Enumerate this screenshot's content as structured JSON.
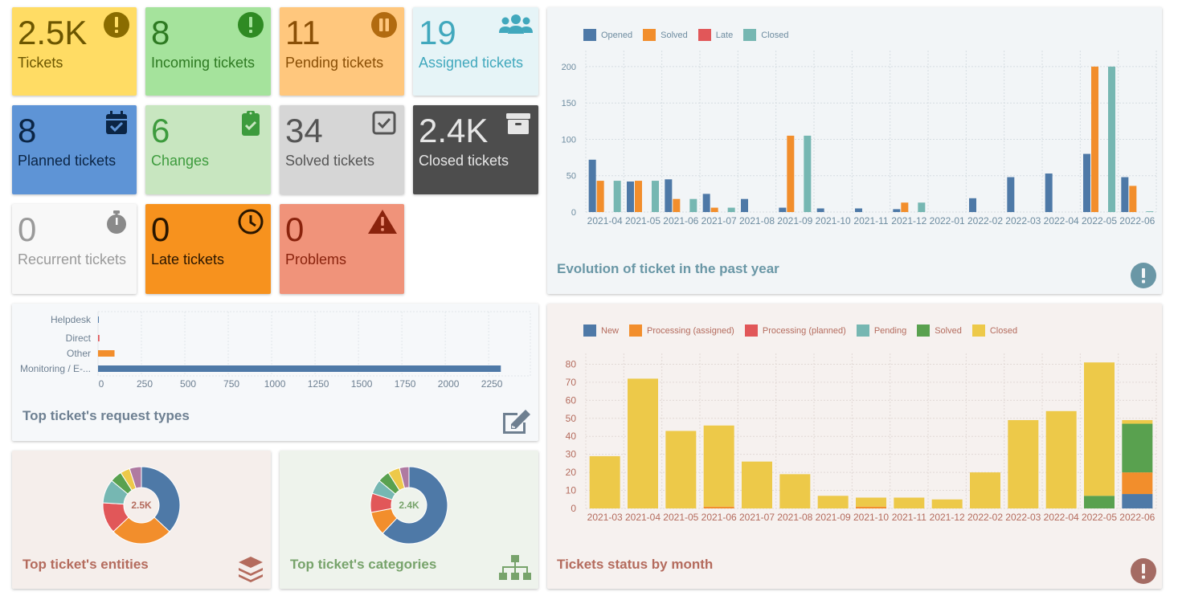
{
  "colors": {
    "blue": "#4e79a7",
    "orange": "#f28e2c",
    "red": "#e15759",
    "teal": "#76b7b2",
    "green": "#59a14f",
    "yellow": "#edc949",
    "purple": "#af7aa1"
  },
  "counters": [
    {
      "id": "tickets",
      "value": "2.5K",
      "label": "Tickets",
      "icon": "exclamation-circle-icon"
    },
    {
      "id": "incoming",
      "value": "8",
      "label": "Incoming tickets",
      "icon": "exclamation-circle-icon"
    },
    {
      "id": "pending",
      "value": "11",
      "label": "Pending tickets",
      "icon": "pause-circle-icon"
    },
    {
      "id": "assigned",
      "value": "19",
      "label": "Assigned tickets",
      "icon": "users-icon"
    },
    {
      "id": "planned",
      "value": "8",
      "label": "Planned tickets",
      "icon": "calendar-check-icon"
    },
    {
      "id": "changes",
      "value": "6",
      "label": "Changes",
      "icon": "clipboard-check-icon"
    },
    {
      "id": "solved",
      "value": "34",
      "label": "Solved tickets",
      "icon": "checkbox-icon"
    },
    {
      "id": "closed",
      "value": "2.4K",
      "label": "Closed tickets",
      "icon": "archive-icon"
    },
    {
      "id": "recurrent",
      "value": "0",
      "label": "Recurrent tickets",
      "icon": "stopwatch-icon"
    },
    {
      "id": "late",
      "value": "0",
      "label": "Late tickets",
      "icon": "clock-icon"
    },
    {
      "id": "problems",
      "value": "0",
      "label": "Problems",
      "icon": "warning-triangle-icon"
    }
  ],
  "widgets": {
    "evolution": {
      "title": "Evolution of ticket in the past year",
      "icon": "exclamation-circle-icon"
    },
    "request_types": {
      "title": "Top ticket's request types",
      "icon": "edit-icon"
    },
    "entities": {
      "title": "Top ticket's entities",
      "icon": "layers-icon",
      "center": "2.5K"
    },
    "categories": {
      "title": "Top ticket's categories",
      "icon": "sitemap-icon",
      "center": "2.4K"
    },
    "status": {
      "title": "Tickets status by month",
      "icon": "exclamation-circle-icon"
    }
  },
  "chart_data": [
    {
      "type": "bar",
      "categories": [
        "2021-04",
        "2021-05",
        "2021-06",
        "2021-07",
        "2021-08",
        "2021-09",
        "2021-10",
        "2021-11",
        "2021-12",
        "2022-01",
        "2022-02",
        "2022-03",
        "2022-04",
        "2022-05",
        "2022-06"
      ],
      "series": [
        {
          "name": "Opened",
          "values": [
            72,
            42,
            45,
            25,
            18,
            6,
            5,
            5,
            4,
            0,
            19,
            48,
            53,
            80,
            48
          ]
        },
        {
          "name": "Solved",
          "values": [
            43,
            43,
            18,
            6,
            0,
            105,
            0,
            0,
            13,
            0,
            0,
            0,
            0,
            200,
            36
          ]
        },
        {
          "name": "Late",
          "values": [
            0,
            0,
            0,
            0,
            0,
            0,
            0,
            0,
            0,
            0,
            0,
            0,
            0,
            0,
            0
          ]
        },
        {
          "name": "Closed",
          "values": [
            43,
            43,
            18,
            6,
            0,
            105,
            0,
            0,
            13,
            0,
            0,
            0,
            0,
            200,
            1
          ]
        }
      ],
      "ylim": [
        0,
        200
      ],
      "yticks": [
        0,
        50,
        100,
        150,
        200
      ],
      "legend": "top-left"
    },
    {
      "type": "bar",
      "orientation": "horizontal",
      "categories": [
        "Helpdesk",
        "Direct",
        "Other",
        "Monitoring / E-..."
      ],
      "values": [
        3,
        8,
        95,
        2320
      ],
      "xticks": [
        0,
        250,
        500,
        750,
        1000,
        1250,
        1500,
        1750,
        2000,
        2250
      ]
    },
    {
      "type": "pie",
      "labels": [
        "",
        "",
        "",
        "",
        "",
        "",
        ""
      ],
      "values": [
        37,
        26,
        13,
        10,
        5,
        4,
        5
      ]
    },
    {
      "type": "pie",
      "labels": [
        "",
        "",
        "",
        "",
        "",
        "",
        ""
      ],
      "values": [
        62,
        10,
        8,
        6,
        5,
        5,
        4
      ]
    },
    {
      "type": "bar",
      "stacked": true,
      "categories": [
        "2021-03",
        "2021-04",
        "2021-05",
        "2021-06",
        "2021-07",
        "2021-08",
        "2021-09",
        "2021-10",
        "2021-11",
        "2021-12",
        "2022-02",
        "2022-03",
        "2022-04",
        "2022-05",
        "2022-06"
      ],
      "series": [
        {
          "name": "New",
          "values": [
            0,
            0,
            0,
            0,
            0,
            0,
            0,
            0,
            0,
            0,
            0,
            0,
            0,
            0,
            8
          ]
        },
        {
          "name": "Processing (assigned)",
          "values": [
            0,
            0,
            0,
            1,
            0,
            0,
            0,
            1,
            0,
            0,
            0,
            0,
            0,
            0,
            12
          ]
        },
        {
          "name": "Processing (planned)",
          "values": [
            0,
            0,
            0,
            0,
            0,
            0,
            0,
            0,
            0,
            0,
            0,
            0,
            0,
            0,
            0
          ]
        },
        {
          "name": "Pending",
          "values": [
            0,
            0,
            0,
            0,
            0,
            0,
            0,
            0,
            0,
            0,
            0,
            0,
            0,
            0,
            0
          ]
        },
        {
          "name": "Solved",
          "values": [
            0,
            0,
            0,
            0,
            0,
            0,
            0,
            0,
            0,
            0,
            0,
            0,
            0,
            7,
            27
          ]
        },
        {
          "name": "Closed",
          "values": [
            29,
            72,
            43,
            45,
            26,
            19,
            7,
            5,
            6,
            5,
            20,
            49,
            54,
            74,
            2
          ]
        }
      ],
      "ylim": [
        0,
        85
      ],
      "yticks": [
        0,
        10,
        20,
        30,
        40,
        50,
        60,
        70,
        80
      ],
      "legend": "top-left"
    }
  ]
}
